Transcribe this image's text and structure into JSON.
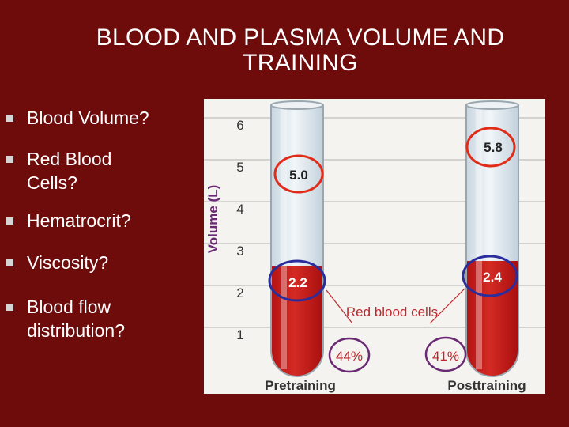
{
  "slide": {
    "title_line1": "BLOOD AND PLASMA VOLUME AND",
    "title_line2": "TRAINING",
    "bullets": [
      {
        "line1": "Blood Volume?",
        "line2": ""
      },
      {
        "line1": "Red Blood",
        "line2": "Cells?"
      },
      {
        "line1": "Hematrocrit?",
        "line2": ""
      },
      {
        "line1": "Viscosity?",
        "line2": ""
      },
      {
        "line1": "Blood flow",
        "line2": "distribution?"
      }
    ]
  },
  "figure": {
    "ylabel": "Volume (L)",
    "ticks": [
      "1",
      "2",
      "3",
      "4",
      "5",
      "6"
    ],
    "tubes": [
      {
        "label": "Pretraining",
        "total": "5.0",
        "rbc": "2.2",
        "pct": "44%"
      },
      {
        "label": "Posttraining",
        "total": "5.8",
        "rbc": "2.4",
        "pct": "41%"
      }
    ],
    "rbc_label": "Red blood cells",
    "colors": {
      "background": "#6e0c0c",
      "blood": "#c61b1b",
      "plasma": "#dbe6ee",
      "highlight_red": "#e02d1a",
      "highlight_blue": "#2a2e9c",
      "figure_bg": "#f4f3ef"
    }
  }
}
